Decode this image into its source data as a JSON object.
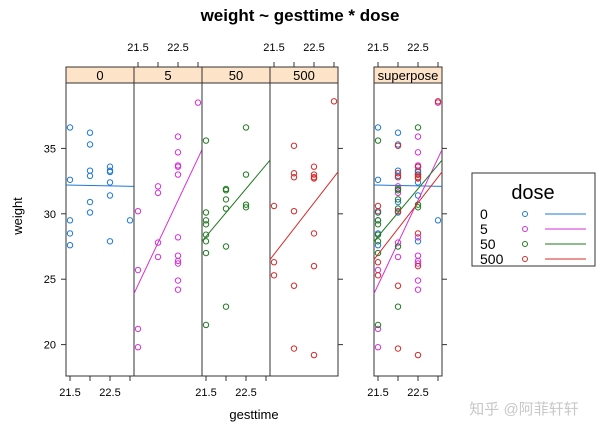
{
  "chart_data": {
    "type": "scatter",
    "title": "weight ~ gesttime * dose",
    "xlabel": "gesttime",
    "ylabel": "weight",
    "xlim": [
      21.4,
      23.1
    ],
    "ylim": [
      17.6,
      40
    ],
    "xticks": [
      21.5,
      22,
      22.5,
      23
    ],
    "xtick_labels": [
      "21.5",
      "22.5"
    ],
    "yticks": [
      20,
      25,
      30,
      35
    ],
    "ytick_labels": [
      "20",
      "25",
      "30",
      "35"
    ],
    "grid": false,
    "colors": {
      "0": "#1f78d4",
      "5": "#d62fd6",
      "50": "#1f7a1f",
      "500": "#d42a2a"
    },
    "strip_color": "#fde3c8",
    "legend": {
      "title": "dose",
      "position": "right",
      "entries": [
        "0",
        "5",
        "50",
        "500"
      ]
    },
    "panels": [
      {
        "label": "0",
        "dose": "0",
        "points": [
          [
            21.5,
            36.6
          ],
          [
            21.5,
            32.6
          ],
          [
            21.5,
            29.5
          ],
          [
            21.5,
            28.5
          ],
          [
            21.5,
            27.6
          ],
          [
            22,
            36.2
          ],
          [
            22,
            35.3
          ],
          [
            22,
            33.3
          ],
          [
            22,
            32.9
          ],
          [
            22,
            30.9
          ],
          [
            22,
            30.1
          ],
          [
            22.5,
            33.6
          ],
          [
            22.5,
            33.3
          ],
          [
            22.5,
            33.2
          ],
          [
            22.5,
            32.4
          ],
          [
            22.5,
            31.4
          ],
          [
            22.5,
            27.9
          ],
          [
            23,
            29.5
          ]
        ],
        "fit": [
          [
            21.4,
            32.2
          ],
          [
            23.1,
            32.1
          ]
        ]
      },
      {
        "label": "5",
        "dose": "5",
        "points": [
          [
            21.5,
            30.2
          ],
          [
            21.5,
            25.7
          ],
          [
            21.5,
            21.2
          ],
          [
            21.5,
            19.8
          ],
          [
            22,
            32.1
          ],
          [
            22,
            31.6
          ],
          [
            22,
            27.8
          ],
          [
            22,
            26.7
          ],
          [
            22.5,
            35.9
          ],
          [
            22.5,
            34.7
          ],
          [
            22.5,
            33.7
          ],
          [
            22.5,
            33.6
          ],
          [
            22.5,
            33.0
          ],
          [
            22.5,
            28.2
          ],
          [
            22.5,
            26.8
          ],
          [
            22.5,
            26.4
          ],
          [
            22.5,
            26.2
          ],
          [
            22.5,
            24.9
          ],
          [
            22.5,
            24.2
          ],
          [
            23,
            38.5
          ]
        ],
        "fit": [
          [
            21.4,
            23.9
          ],
          [
            23.1,
            34.9
          ]
        ]
      },
      {
        "label": "50",
        "dose": "50",
        "points": [
          [
            21.5,
            35.6
          ],
          [
            21.5,
            30.1
          ],
          [
            21.5,
            29.5
          ],
          [
            21.5,
            29.2
          ],
          [
            21.5,
            28.4
          ],
          [
            21.5,
            27.9
          ],
          [
            21.5,
            27.0
          ],
          [
            21.5,
            21.5
          ],
          [
            22,
            31.9
          ],
          [
            22,
            31.8
          ],
          [
            22,
            31.1
          ],
          [
            22,
            30.4
          ],
          [
            22,
            27.5
          ],
          [
            22,
            22.9
          ],
          [
            22.5,
            36.6
          ],
          [
            22.5,
            33.0
          ],
          [
            22.5,
            30.7
          ],
          [
            22.5,
            30.5
          ]
        ],
        "fit": [
          [
            21.4,
            27.9
          ],
          [
            23.1,
            34.1
          ]
        ]
      },
      {
        "label": "500",
        "dose": "500",
        "points": [
          [
            21.5,
            30.6
          ],
          [
            21.5,
            26.3
          ],
          [
            21.5,
            25.3
          ],
          [
            22,
            35.2
          ],
          [
            22,
            33.1
          ],
          [
            22,
            32.8
          ],
          [
            22,
            30.2
          ],
          [
            22,
            24.5
          ],
          [
            22,
            19.7
          ],
          [
            22.5,
            33.6
          ],
          [
            22.5,
            33.0
          ],
          [
            22.5,
            32.8
          ],
          [
            22.5,
            32.7
          ],
          [
            22.5,
            28.5
          ],
          [
            22.5,
            26.0
          ],
          [
            22.5,
            19.2
          ],
          [
            23,
            38.6
          ]
        ],
        "fit": [
          [
            21.4,
            26.5
          ],
          [
            23.1,
            33.2
          ]
        ]
      }
    ],
    "superpose_label": "superpose"
  },
  "watermark": "知乎 @阿菲轩轩"
}
